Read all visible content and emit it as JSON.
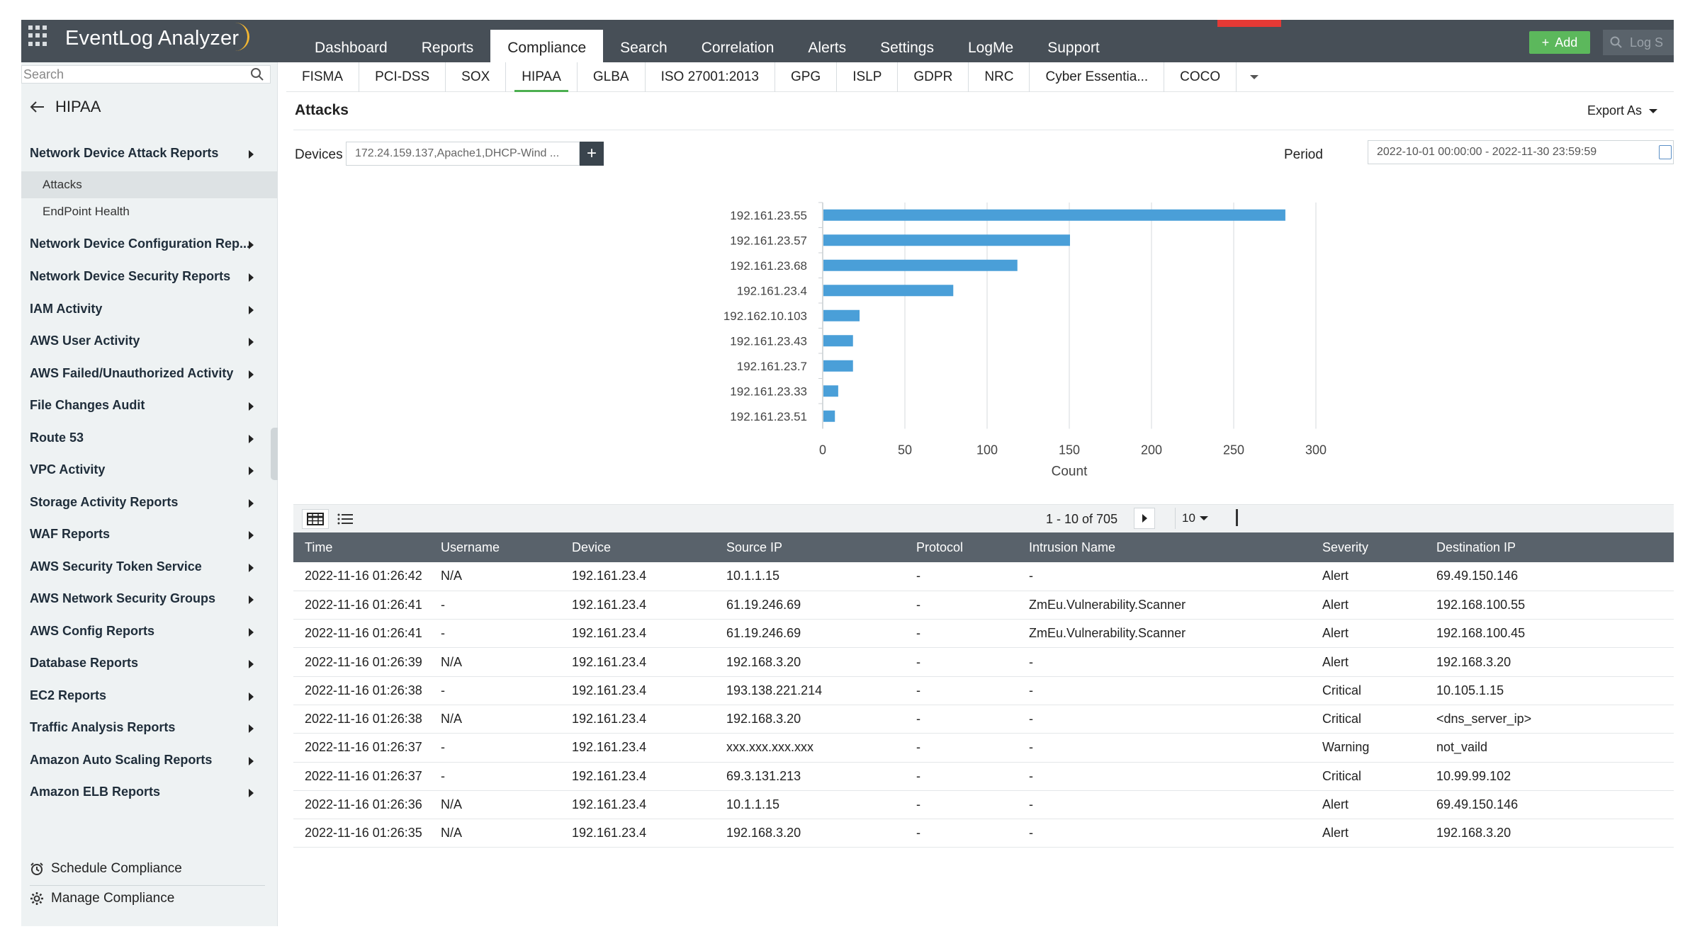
{
  "app": {
    "title": "EventLog Analyzer"
  },
  "nav": [
    "Dashboard",
    "Reports",
    "Compliance",
    "Search",
    "Correlation",
    "Alerts",
    "Settings",
    "LogMe",
    "Support"
  ],
  "topbar": {
    "add_label": "Add",
    "search_placeholder": "Log S"
  },
  "sidebar": {
    "search_placeholder": "Search",
    "header": "HIPAA",
    "groups": [
      "Network Device Attack Reports",
      "Network Device Configuration Rep...",
      "Network Device Security Reports",
      "IAM Activity",
      "AWS User Activity",
      "AWS Failed/Unauthorized Activity",
      "File Changes Audit",
      "Route 53",
      "VPC Activity",
      "Storage Activity Reports",
      "WAF Reports",
      "AWS Security Token Service",
      "AWS Network Security Groups",
      "AWS Config Reports",
      "Database Reports",
      "EC2 Reports",
      "Traffic Analysis Reports",
      "Amazon Auto Scaling Reports",
      "Amazon ELB Reports"
    ],
    "sub_items": [
      "Attacks",
      "EndPoint Health"
    ],
    "bottom": [
      "Schedule Compliance",
      "Manage Compliance"
    ]
  },
  "subtabs": [
    "FISMA",
    "PCI-DSS",
    "SOX",
    "HIPAA",
    "GLBA",
    "ISO 27001:2013",
    "GPG",
    "ISLP",
    "GDPR",
    "NRC",
    "Cyber Essentia...",
    "COCO"
  ],
  "page": {
    "title": "Attacks",
    "export_label": "Export As",
    "devices_label": "Devices",
    "devices_value": "172.24.159.137,Apache1,DHCP-Wind ...",
    "period_label": "Period",
    "period_value": "2022-10-01 00:00:00 - 2022-11-30 23:59:59"
  },
  "chart_data": {
    "type": "bar",
    "orientation": "horizontal",
    "categories": [
      "192.161.23.55",
      "192.161.23.57",
      "192.161.23.68",
      "192.161.23.4",
      "192.162.10.103",
      "192.161.23.43",
      "192.161.23.7",
      "192.161.23.33",
      "192.161.23.51"
    ],
    "values": [
      281,
      150,
      118,
      79,
      22,
      18,
      18,
      9,
      7
    ],
    "xlabel": "Count",
    "xticks": [
      0,
      50,
      100,
      150,
      200,
      250,
      300
    ],
    "xlim": [
      0,
      300
    ],
    "grid": true,
    "bar_color": "#4a9fd8"
  },
  "table": {
    "pagination": "1 - 10 of 705",
    "per_page": "10",
    "columns": [
      "Time",
      "Username",
      "Device",
      "Source IP",
      "Protocol",
      "Intrusion Name",
      "Severity",
      "Destination IP"
    ],
    "rows": [
      [
        "2022-11-16 01:26:42",
        "N/A",
        "192.161.23.4",
        "10.1.1.15",
        "-",
        "-",
        "Alert",
        "69.49.150.146"
      ],
      [
        "2022-11-16 01:26:41",
        "-",
        "192.161.23.4",
        "61.19.246.69",
        "-",
        "ZmEu.Vulnerability.Scanner",
        "Alert",
        "192.168.100.55"
      ],
      [
        "2022-11-16 01:26:41",
        "-",
        "192.161.23.4",
        "61.19.246.69",
        "-",
        "ZmEu.Vulnerability.Scanner",
        "Alert",
        "192.168.100.45"
      ],
      [
        "2022-11-16 01:26:39",
        "N/A",
        "192.161.23.4",
        "192.168.3.20",
        "-",
        "-",
        "Alert",
        "192.168.3.20"
      ],
      [
        "2022-11-16 01:26:38",
        "-",
        "192.161.23.4",
        "193.138.221.214",
        "-",
        "-",
        "Critical",
        "10.105.1.15"
      ],
      [
        "2022-11-16 01:26:38",
        "N/A",
        "192.161.23.4",
        "192.168.3.20",
        "-",
        "-",
        "Critical",
        "<dns_server_ip>"
      ],
      [
        "2022-11-16 01:26:37",
        "-",
        "192.161.23.4",
        "xxx.xxx.xxx.xxx",
        "-",
        "-",
        "Warning",
        "not_vaild"
      ],
      [
        "2022-11-16 01:26:37",
        "-",
        "192.161.23.4",
        "69.3.131.213",
        "-",
        "-",
        "Critical",
        "10.99.99.102"
      ],
      [
        "2022-11-16 01:26:36",
        "N/A",
        "192.161.23.4",
        "10.1.1.15",
        "-",
        "-",
        "Alert",
        "69.49.150.146"
      ],
      [
        "2022-11-16 01:26:35",
        "N/A",
        "192.161.23.4",
        "192.168.3.20",
        "-",
        "-",
        "Alert",
        "192.168.3.20"
      ]
    ]
  }
}
